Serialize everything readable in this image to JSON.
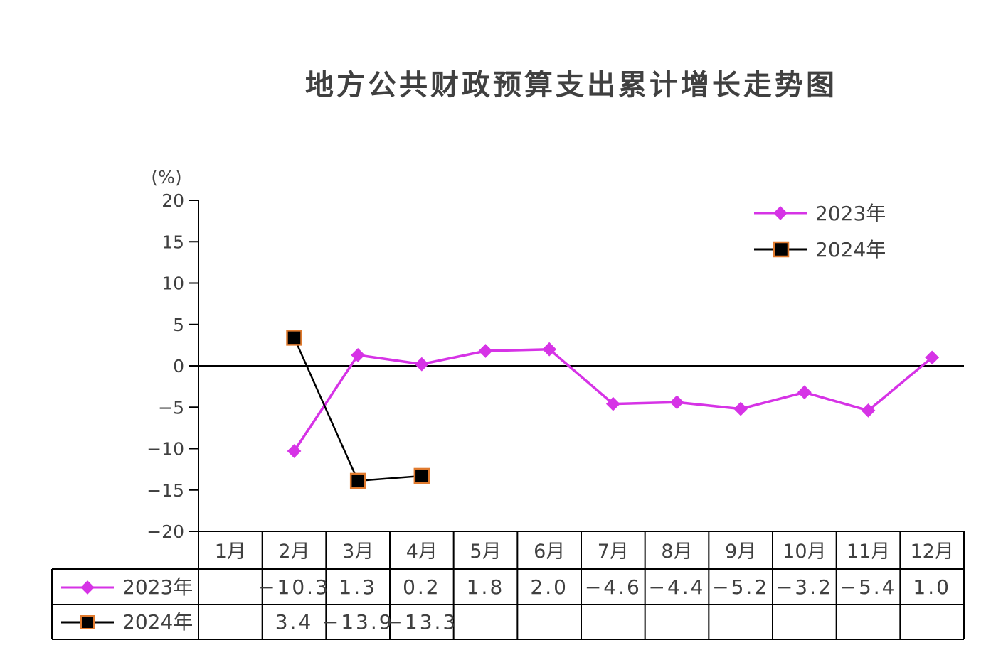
{
  "chart_data": {
    "type": "line",
    "title": "地方公共财政预算支出累计增长走势图",
    "ylabel": "(%)",
    "xlabel": "",
    "ylim": [
      -20,
      20
    ],
    "yticks": [
      "20",
      "15",
      "10",
      "5",
      "0",
      "−5",
      "−10",
      "−15",
      "−20"
    ],
    "categories": [
      "1月",
      "2月",
      "3月",
      "4月",
      "5月",
      "6月",
      "7月",
      "8月",
      "9月",
      "10月",
      "11月",
      "12月"
    ],
    "legend_position": "top-right",
    "series": [
      {
        "name": "2023年",
        "color": "#d633e6",
        "marker": "diamond",
        "values": [
          null,
          -10.3,
          1.3,
          0.2,
          1.8,
          2.0,
          -4.6,
          -4.4,
          -5.2,
          -3.2,
          -5.4,
          1.0
        ],
        "labels": [
          "",
          "−10.3",
          "1.3",
          "0.2",
          "1.8",
          "2.0",
          "−4.6",
          "−4.4",
          "−5.2",
          "−3.2",
          "−5.4",
          "1.0"
        ]
      },
      {
        "name": "2024年",
        "color": "#000000",
        "marker_edge": "#e07a2e",
        "marker": "square",
        "values": [
          null,
          3.4,
          -13.9,
          -13.3,
          null,
          null,
          null,
          null,
          null,
          null,
          null,
          null
        ],
        "labels": [
          "",
          "3.4",
          "−13.9",
          "−13.3",
          "",
          "",
          "",
          "",
          "",
          "",
          "",
          ""
        ]
      }
    ]
  }
}
